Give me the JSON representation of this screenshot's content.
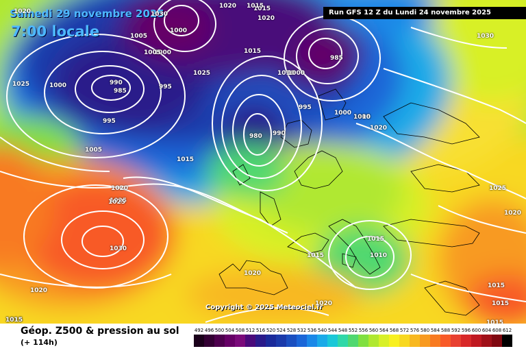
{
  "header": {
    "date_label": "Samedi 29 novembre 2025",
    "time_label": "7:00 locale",
    "run_label": "Run GFS 12 Z du Lundi 24 novembre 2025"
  },
  "copyright": "Copyright © 2025 Meteociel.fr",
  "footer": {
    "title": "Géop. Z500 & pression au sol",
    "subtitle": "(+ 114h)"
  },
  "legend": {
    "values": [
      "492",
      "496",
      "500",
      "504",
      "508",
      "512",
      "516",
      "520",
      "524",
      "528",
      "532",
      "536",
      "540",
      "544",
      "548",
      "552",
      "556",
      "560",
      "564",
      "568",
      "572",
      "576",
      "580",
      "584",
      "588",
      "592",
      "596",
      "600",
      "604",
      "608",
      "612"
    ],
    "colors": [
      "#1a001a",
      "#330033",
      "#4d004d",
      "#660066",
      "#7a0a7a",
      "#4a0a7a",
      "#2a1a8a",
      "#1a2a9a",
      "#1a3aaa",
      "#1a4fc0",
      "#1a66d8",
      "#1a88e8",
      "#1aaae8",
      "#1ac8d8",
      "#30d8a8",
      "#50d870",
      "#80e040",
      "#b0e830",
      "#d8f028",
      "#f8f020",
      "#f8d820",
      "#f8b820",
      "#f89a20",
      "#f87a20",
      "#f85a28",
      "#e84030",
      "#d82828",
      "#c01820",
      "#a01018",
      "#800810",
      "#000000"
    ]
  },
  "pressure_labels": [
    "1020",
    "1025",
    "1000",
    "995",
    "1005",
    "1030",
    "1020",
    "1015",
    "1020",
    "1005",
    "1000",
    "1025",
    "990",
    "985",
    "1000",
    "1005",
    "995",
    "985",
    "1010",
    "1000",
    "1015",
    "980",
    "990",
    "995",
    "1000",
    "1005",
    "1010",
    "1020",
    "1015",
    "1025",
    "1020",
    "1025",
    "1030",
    "1020",
    "1015",
    "1015",
    "1020",
    "1015",
    "1010",
    "1015",
    "1020",
    "1025",
    "1030",
    "1015",
    "1015",
    "1015",
    "1020",
    "1015"
  ],
  "map_colors": {
    "deep_low": "#2a0a5a",
    "low": "#1a3aaa",
    "mid": "#1aaae8",
    "green": "#50d870",
    "yellow": "#f0f020",
    "orange": "#f8a020",
    "red": "#f05020"
  }
}
